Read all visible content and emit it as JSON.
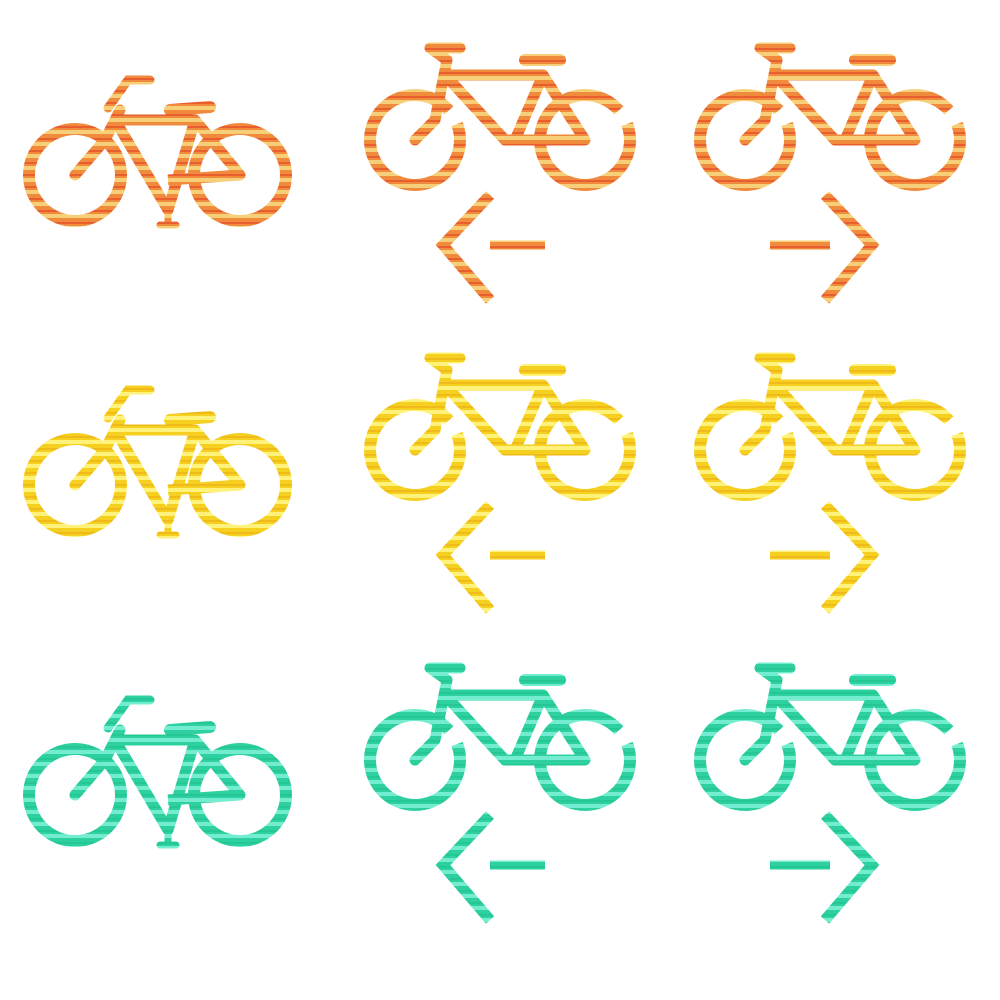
{
  "rows": [
    {
      "theme": "red-orange",
      "gradient": {
        "dark": "#e0281e",
        "mid": "#f08a3c",
        "light": "#f6cf78"
      },
      "icons": [
        "bicycle-icon",
        "bicycle-icon",
        "bicycle-icon"
      ],
      "arrows": [
        "arrow-left-icon",
        "arrow-right-icon"
      ]
    },
    {
      "theme": "yellow",
      "gradient": {
        "dark": "#e6a012",
        "mid": "#f5d020",
        "light": "#fff27a"
      },
      "icons": [
        "bicycle-icon",
        "bicycle-icon",
        "bicycle-icon"
      ],
      "arrows": [
        "arrow-left-icon",
        "arrow-right-icon"
      ]
    },
    {
      "theme": "teal",
      "gradient": {
        "dark": "#18bf88",
        "mid": "#2fd0a0",
        "light": "#74ecd0"
      },
      "icons": [
        "bicycle-icon",
        "bicycle-icon",
        "bicycle-icon"
      ],
      "arrows": [
        "arrow-left-icon",
        "arrow-right-icon"
      ]
    }
  ]
}
